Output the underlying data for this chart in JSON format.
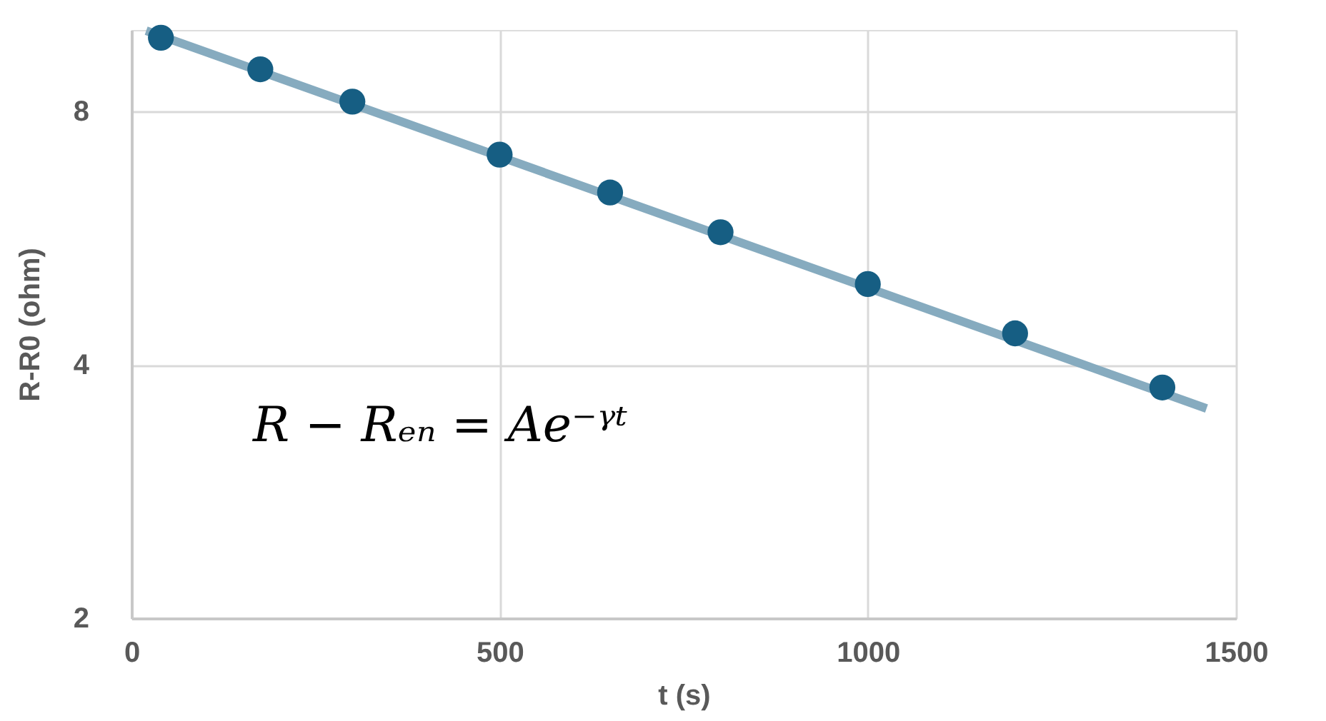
{
  "chart_data": {
    "type": "scatter",
    "xlabel": "t (s)",
    "ylabel": "R-R0 (ohm)",
    "annotations": [
      "R − Rₑₙ = Ae⁻ᵞᵗ"
    ],
    "xlim": [
      0,
      1500
    ],
    "xticks": [
      0,
      500,
      1000,
      1500
    ],
    "ylim": [
      2,
      10
    ],
    "yticks": [
      2,
      4,
      8
    ],
    "log": true,
    "grid": true,
    "series": [
      {
        "type": "line",
        "color": "#86abbf",
        "x": [
          20,
          1460
        ],
        "values": [
          9.98,
          3.55
        ],
        "line_style": "solid",
        "marker": "none"
      },
      {
        "type": "scatter",
        "color": "#165e83",
        "x": [
          40,
          175,
          300,
          500,
          650,
          800,
          1000,
          1200,
          1400
        ],
        "values": [
          9.79,
          8.98,
          8.22,
          7.11,
          6.41,
          5.75,
          4.99,
          4.36,
          3.76
        ],
        "marker": "circle"
      }
    ]
  }
}
